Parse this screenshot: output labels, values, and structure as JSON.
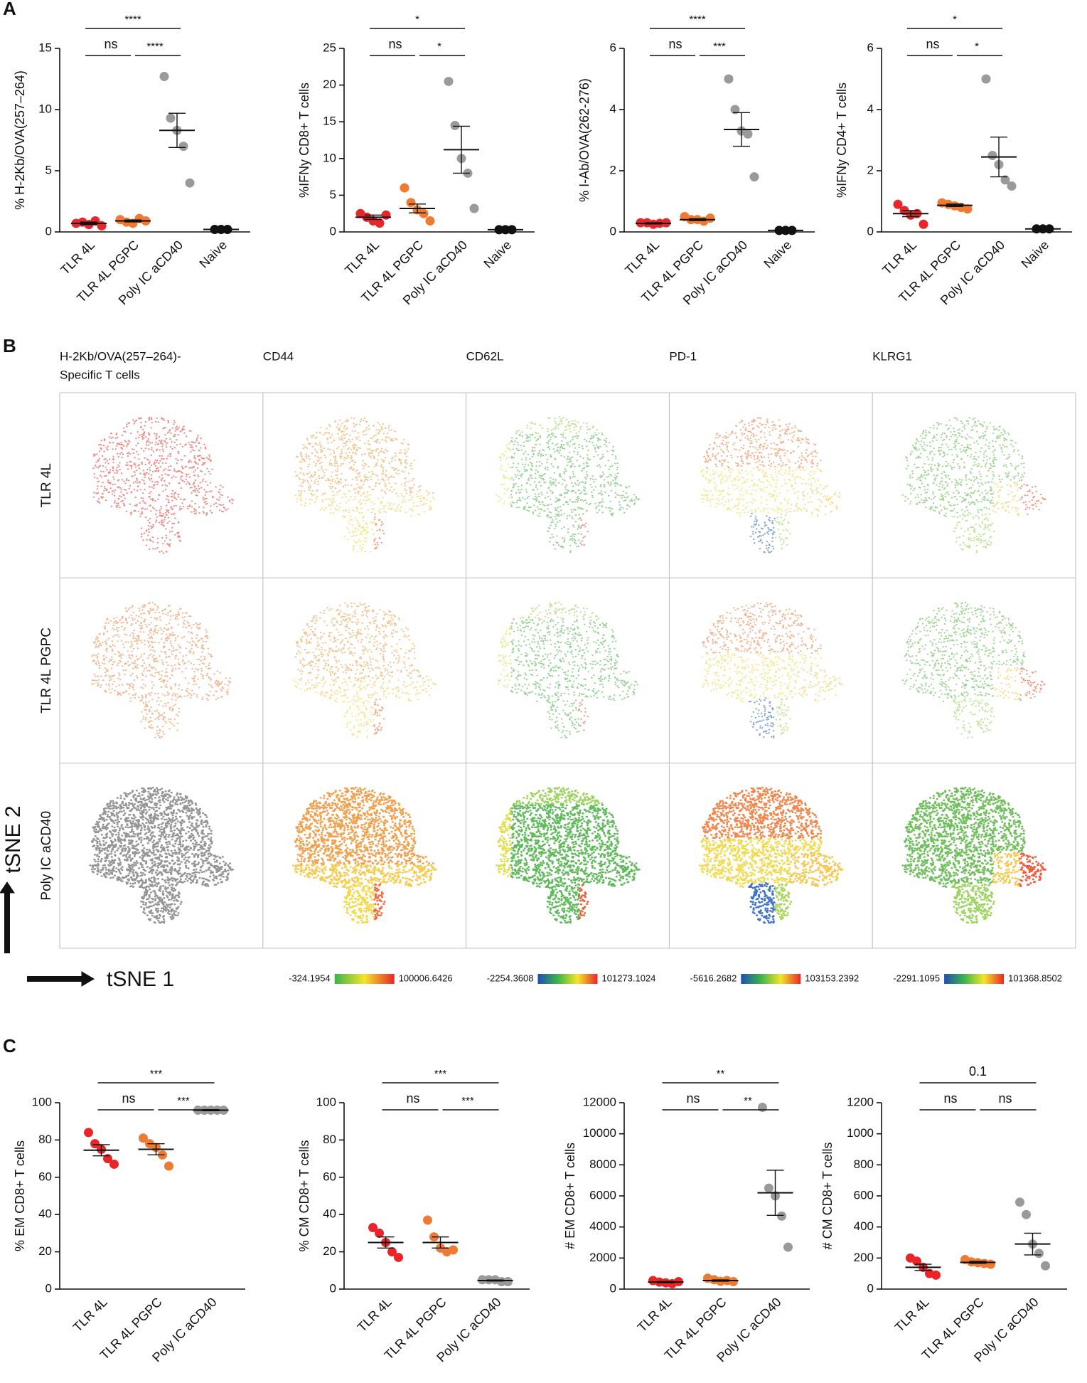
{
  "panel_labels": [
    "A",
    "B",
    "C"
  ],
  "chart_data": [
    {
      "type": "dotplot",
      "ylabel": "% H-2Kb/OVA(257–264)",
      "categories": [
        "TLR 4L",
        "TLR 4L PGPC",
        "Poly IC aCD40",
        "Naive"
      ],
      "colors": [
        "#e8262a",
        "#ef7a32",
        "#9a9a9a",
        "#111111"
      ],
      "points": [
        [
          0.7,
          0.8,
          0.6,
          0.9,
          0.5
        ],
        [
          1.0,
          0.8,
          0.7,
          1.1,
          0.9
        ],
        [
          12.7,
          9.3,
          8.3,
          7.0,
          4.0
        ],
        [
          0.2,
          0.2,
          0.2
        ]
      ],
      "mean": [
        0.7,
        0.9,
        8.3,
        0.2
      ],
      "sem": [
        0.1,
        0.08,
        1.4,
        0.01
      ],
      "ylim": [
        0,
        15
      ],
      "yticks": [
        0,
        5,
        10,
        15
      ],
      "annotations": [
        {
          "label": "ns",
          "between": [
            "TLR 4L",
            "TLR 4L PGPC"
          ]
        },
        {
          "label": "****",
          "between": [
            "TLR 4L PGPC",
            "Poly IC aCD40"
          ]
        },
        {
          "label": "****",
          "between": [
            "TLR 4L",
            "Poly IC aCD40"
          ]
        }
      ]
    },
    {
      "type": "dotplot",
      "ylabel": "%IFNy CD8+ T cells",
      "categories": [
        "TLR 4L",
        "TLR 4L PGPC",
        "Poly IC aCD40",
        "Naive"
      ],
      "colors": [
        "#e8262a",
        "#ef7a32",
        "#9a9a9a",
        "#111111"
      ],
      "points": [
        [
          2.5,
          2.0,
          1.5,
          1.2,
          2.3
        ],
        [
          6.0,
          4.0,
          3.0,
          2.5,
          1.5
        ],
        [
          20.5,
          14.5,
          10.0,
          8.0,
          3.2
        ],
        [
          0.3,
          0.3,
          0.3
        ]
      ],
      "mean": [
        2.0,
        3.2,
        11.2,
        0.3
      ],
      "sem": [
        0.3,
        0.6,
        3.2,
        0.01
      ],
      "ylim": [
        0,
        25
      ],
      "yticks": [
        0,
        5,
        10,
        15,
        20,
        25
      ],
      "annotations": [
        {
          "label": "ns",
          "between": [
            "TLR 4L",
            "TLR 4L PGPC"
          ]
        },
        {
          "label": "*",
          "between": [
            "TLR 4L PGPC",
            "Poly IC aCD40"
          ]
        },
        {
          "label": "*",
          "between": [
            "TLR 4L",
            "Poly IC aCD40"
          ]
        }
      ]
    },
    {
      "type": "dotplot",
      "ylabel": "% I-Ab/OVA(262-276)",
      "categories": [
        "TLR 4L",
        "TLR 4L PGPC",
        "Poly IC aCD40",
        "Naive"
      ],
      "colors": [
        "#e8262a",
        "#ef7a32",
        "#9a9a9a",
        "#111111"
      ],
      "points": [
        [
          0.3,
          0.3,
          0.25,
          0.28,
          0.3
        ],
        [
          0.5,
          0.4,
          0.4,
          0.35,
          0.45
        ],
        [
          5.0,
          4.0,
          3.3,
          3.2,
          1.8
        ],
        [
          0.05,
          0.05,
          0.05
        ]
      ],
      "mean": [
        0.28,
        0.4,
        3.35,
        0.05
      ],
      "sem": [
        0.02,
        0.03,
        0.55,
        0.01
      ],
      "ylim": [
        0,
        6
      ],
      "yticks": [
        0,
        2,
        4,
        6
      ],
      "annotations": [
        {
          "label": "ns",
          "between": [
            "TLR 4L",
            "TLR 4L PGPC"
          ]
        },
        {
          "label": "***",
          "between": [
            "TLR 4L PGPC",
            "Poly IC aCD40"
          ]
        },
        {
          "label": "****",
          "between": [
            "TLR 4L",
            "Poly IC aCD40"
          ]
        }
      ]
    },
    {
      "type": "dotplot",
      "ylabel": "%IFNy CD4+ T cells",
      "categories": [
        "TLR 4L",
        "TLR 4L PGPC",
        "Poly IC aCD40",
        "Naive"
      ],
      "colors": [
        "#e8262a",
        "#ef7a32",
        "#9a9a9a",
        "#111111"
      ],
      "points": [
        [
          0.9,
          0.7,
          0.55,
          0.6,
          0.25
        ],
        [
          0.95,
          0.9,
          0.85,
          0.8,
          0.75
        ],
        [
          5.0,
          2.5,
          2.2,
          1.7,
          1.5
        ],
        [
          0.1,
          0.1,
          0.1
        ]
      ],
      "mean": [
        0.6,
        0.87,
        2.45,
        0.1
      ],
      "sem": [
        0.1,
        0.04,
        0.65,
        0.01
      ],
      "ylim": [
        0,
        6
      ],
      "yticks": [
        0,
        2,
        4,
        6
      ],
      "annotations": [
        {
          "label": "ns",
          "between": [
            "TLR 4L",
            "TLR 4L PGPC"
          ]
        },
        {
          "label": "*",
          "between": [
            "TLR 4L PGPC",
            "Poly IC aCD40"
          ]
        },
        {
          "label": "*",
          "between": [
            "TLR 4L",
            "Poly IC aCD40"
          ]
        }
      ]
    },
    {
      "type": "dotplot",
      "ylabel": "% EM CD8+ T cells",
      "categories": [
        "TLR 4L",
        "TLR 4L PGPC",
        "Poly IC aCD40"
      ],
      "colors": [
        "#e8262a",
        "#ef7a32",
        "#9a9a9a"
      ],
      "points": [
        [
          84,
          78,
          75,
          70,
          67
        ],
        [
          81,
          78,
          76,
          72,
          66
        ],
        [
          96,
          96,
          96,
          96,
          96
        ]
      ],
      "mean": [
        74.5,
        75,
        96
      ],
      "sem": [
        3,
        3,
        0.3
      ],
      "ylim": [
        0,
        100
      ],
      "yticks": [
        0,
        20,
        40,
        60,
        80,
        100
      ],
      "annotations": [
        {
          "label": "ns",
          "between": [
            "TLR 4L",
            "TLR 4L PGPC"
          ]
        },
        {
          "label": "***",
          "between": [
            "TLR 4L PGPC",
            "Poly IC aCD40"
          ]
        },
        {
          "label": "***",
          "between": [
            "TLR 4L",
            "Poly IC aCD40"
          ]
        }
      ]
    },
    {
      "type": "dotplot",
      "ylabel": "% CM CD8+ T cells",
      "categories": [
        "TLR 4L",
        "TLR 4L PGPC",
        "Poly IC aCD40"
      ],
      "colors": [
        "#e8262a",
        "#ef7a32",
        "#9a9a9a"
      ],
      "points": [
        [
          33,
          30,
          25,
          20,
          17
        ],
        [
          37,
          28,
          22,
          20,
          21
        ],
        [
          5,
          5,
          5,
          4,
          4
        ]
      ],
      "mean": [
        25,
        25,
        4.6
      ],
      "sem": [
        3,
        3,
        0.3
      ],
      "ylim": [
        0,
        100
      ],
      "yticks": [
        0,
        20,
        40,
        60,
        80,
        100
      ],
      "annotations": [
        {
          "label": "ns",
          "between": [
            "TLR 4L",
            "TLR 4L PGPC"
          ]
        },
        {
          "label": "***",
          "between": [
            "TLR 4L PGPC",
            "Poly IC aCD40"
          ]
        },
        {
          "label": "***",
          "between": [
            "TLR 4L",
            "Poly IC aCD40"
          ]
        }
      ]
    },
    {
      "type": "dotplot",
      "ylabel": "# EM CD8+ T cells",
      "categories": [
        "TLR 4L",
        "TLR 4L PGPC",
        "Poly IC aCD40"
      ],
      "colors": [
        "#e8262a",
        "#ef7a32",
        "#9a9a9a"
      ],
      "points": [
        [
          550,
          450,
          400,
          350,
          480
        ],
        [
          700,
          600,
          500,
          550,
          480
        ],
        [
          11700,
          6500,
          6000,
          4700,
          2700
        ]
      ],
      "mean": [
        450,
        550,
        6200
      ],
      "sem": [
        40,
        40,
        1450
      ],
      "ylim": [
        0,
        12000
      ],
      "yticks": [
        0,
        2000,
        4000,
        6000,
        8000,
        10000,
        12000
      ],
      "annotations": [
        {
          "label": "ns",
          "between": [
            "TLR 4L",
            "TLR 4L PGPC"
          ]
        },
        {
          "label": "**",
          "between": [
            "TLR 4L PGPC",
            "Poly IC aCD40"
          ]
        },
        {
          "label": "**",
          "between": [
            "TLR 4L",
            "Poly IC aCD40"
          ]
        }
      ]
    },
    {
      "type": "dotplot",
      "ylabel": "# CM CD8+ T cells",
      "categories": [
        "TLR 4L",
        "TLR 4L PGPC",
        "Poly IC aCD40"
      ],
      "colors": [
        "#e8262a",
        "#ef7a32",
        "#9a9a9a"
      ],
      "points": [
        [
          200,
          180,
          140,
          100,
          90
        ],
        [
          190,
          175,
          170,
          165,
          160
        ],
        [
          560,
          480,
          290,
          230,
          150
        ]
      ],
      "mean": [
        140,
        172,
        290
      ],
      "sem": [
        20,
        6,
        70
      ],
      "ylim": [
        0,
        1200
      ],
      "yticks": [
        0,
        200,
        400,
        600,
        800,
        1000,
        1200
      ],
      "annotations": [
        {
          "label": "ns",
          "between": [
            "TLR 4L",
            "TLR 4L PGPC"
          ]
        },
        {
          "label": "ns",
          "between": [
            "TLR 4L PGPC",
            "Poly IC aCD40"
          ]
        },
        {
          "label": "0.1",
          "between": [
            "TLR 4L",
            "Poly IC aCD40"
          ]
        }
      ]
    }
  ],
  "tsne": {
    "column_titles": [
      [
        "H-2Kb/OVA(257–264)-",
        "Specific T cells"
      ],
      [
        "CD44"
      ],
      [
        "CD62L"
      ],
      [
        "PD-1"
      ],
      [
        "KLRG1"
      ]
    ],
    "row_titles": [
      "TLR 4L",
      "TLR 4L PGPC",
      "Poly IC aCD40"
    ],
    "x_axis": "tSNE 1",
    "y_axis": "tSNE 2",
    "colorbars": [
      {
        "min": -324.1954,
        "max": 100006.6426,
        "colors": [
          "#3cb44b",
          "#f5e52a",
          "#e8262a"
        ]
      },
      {
        "min": -2254.3608,
        "max": 101273.1024,
        "colors": [
          "#1f4fb4",
          "#3cb44b",
          "#f5e52a",
          "#e8262a"
        ]
      },
      {
        "min": -5616.2682,
        "max": 103153.2392,
        "colors": [
          "#1f4fb4",
          "#3cb44b",
          "#f5e52a",
          "#e8262a"
        ]
      },
      {
        "min": -2291.1095,
        "max": 101368.8502,
        "colors": [
          "#1f4fb4",
          "#3cb44b",
          "#f5e52a",
          "#e8262a"
        ]
      }
    ]
  }
}
